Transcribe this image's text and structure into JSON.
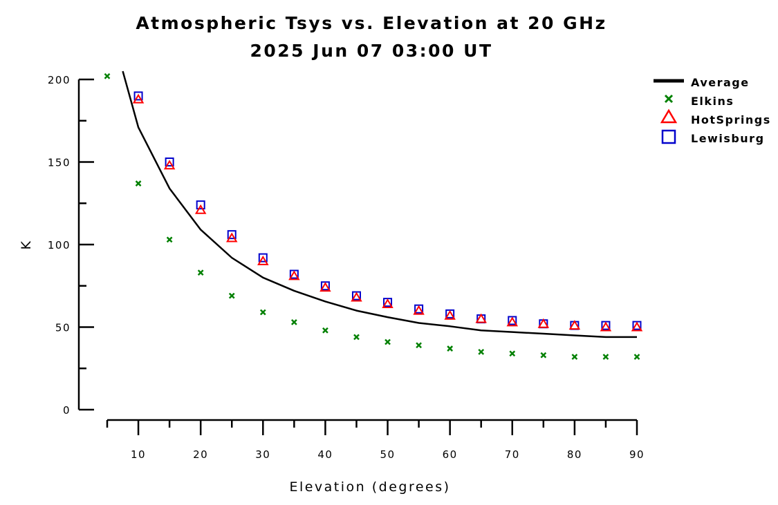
{
  "chart_data": {
    "type": "scatter",
    "title": "Atmospheric Tsys vs. Elevation at 20 GHz",
    "subtitle": "2025 Jun 07 03:00 UT",
    "xlabel": "Elevation (degrees)",
    "ylabel": "K",
    "xlim": [
      5,
      90
    ],
    "ylim": [
      0,
      200
    ],
    "x_ticks": [
      10,
      20,
      30,
      40,
      50,
      60,
      70,
      80,
      90
    ],
    "x_tick_labels": [
      "10",
      "20",
      "30",
      "40",
      "50",
      "60",
      "70",
      "80",
      "90"
    ],
    "y_ticks": [
      0,
      50,
      100,
      150,
      200
    ],
    "y_tick_labels": [
      "0",
      "50",
      "100",
      "150",
      "200"
    ],
    "grid": false,
    "legend_position": "top-right",
    "x": [
      5,
      10,
      15,
      20,
      25,
      30,
      35,
      40,
      45,
      50,
      55,
      60,
      65,
      70,
      75,
      80,
      85,
      90
    ],
    "series": [
      {
        "name": "Average",
        "style": "line",
        "color": "#000000",
        "x": [
          7.5,
          10,
          15,
          20,
          25,
          30,
          35,
          40,
          45,
          50,
          55,
          60,
          65,
          70,
          75,
          80,
          85,
          90
        ],
        "values": [
          205,
          171,
          134,
          109,
          92,
          80,
          72,
          65.5,
          60,
          56,
          52.5,
          50.5,
          48,
          47,
          46,
          45,
          44,
          44
        ]
      },
      {
        "name": "Elkins",
        "style": "x-marker",
        "color": "#008000",
        "x": [
          5,
          10,
          15,
          20,
          25,
          30,
          35,
          40,
          45,
          50,
          55,
          60,
          65,
          70,
          75,
          80,
          85,
          90
        ],
        "values": [
          202,
          137,
          103,
          83,
          69,
          59,
          53,
          48,
          44,
          41,
          39,
          37,
          35,
          34,
          33,
          32,
          32,
          32
        ]
      },
      {
        "name": "HotSprings",
        "style": "triangle-marker",
        "color": "#ff0000",
        "x": [
          10,
          15,
          20,
          25,
          30,
          35,
          40,
          45,
          50,
          55,
          60,
          65,
          70,
          75,
          80,
          85,
          90
        ],
        "values": [
          188,
          148,
          121,
          104,
          90,
          81,
          74,
          68,
          64,
          60,
          57,
          55,
          53,
          52,
          51,
          50,
          50
        ]
      },
      {
        "name": "Lewisburg",
        "style": "square-marker",
        "color": "#0000cc",
        "x": [
          10,
          15,
          20,
          25,
          30,
          35,
          40,
          45,
          50,
          55,
          60,
          65,
          70,
          75,
          80,
          85,
          90
        ],
        "values": [
          190,
          150,
          124,
          106,
          92,
          82,
          75,
          69,
          65,
          61,
          58,
          55,
          54,
          52,
          51,
          51,
          51
        ]
      }
    ]
  }
}
